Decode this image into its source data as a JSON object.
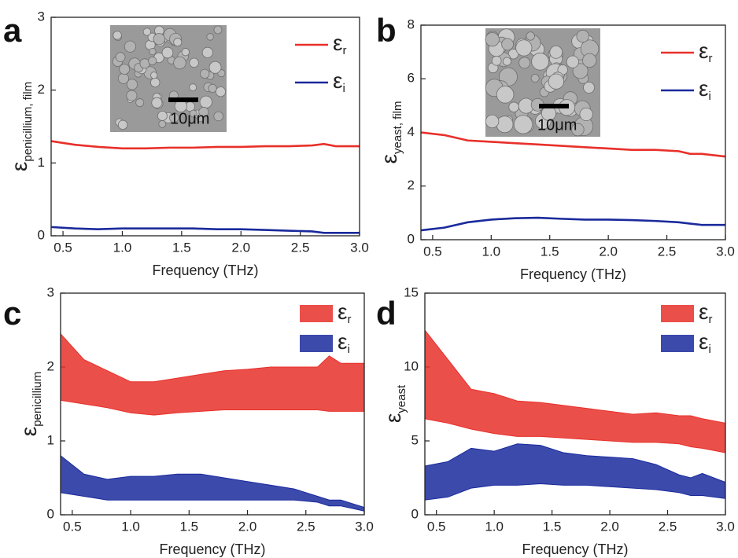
{
  "chart_data": [
    {
      "type": "line",
      "label": "a",
      "xlabel": "Frequency (THz)",
      "ylabel": {
        "symbol": "ε",
        "subscript": "penicillium, film"
      },
      "inset_label": "10μm",
      "xlim": [
        0.4,
        3.0
      ],
      "xticks": [
        0.5,
        {
          "value": 1,
          "label": "1.0"
        },
        1.5,
        {
          "value": 2,
          "label": "2.0"
        },
        2.5,
        {
          "value": 3,
          "label": "3.0"
        }
      ],
      "ylim": [
        0,
        3
      ],
      "yticks": [
        0,
        1,
        2,
        3
      ],
      "x": [
        0.4,
        0.6,
        0.8,
        1.0,
        1.2,
        1.4,
        1.6,
        1.8,
        2.0,
        2.2,
        2.4,
        2.6,
        2.7,
        2.8,
        3.0
      ],
      "series": [
        {
          "name": "ε",
          "subscript": "r",
          "color": "#e8302a",
          "values": [
            1.3,
            1.25,
            1.22,
            1.2,
            1.2,
            1.21,
            1.21,
            1.22,
            1.22,
            1.23,
            1.23,
            1.24,
            1.26,
            1.23,
            1.23
          ]
        },
        {
          "name": "ε",
          "subscript": "i",
          "color": "#1a2a9c",
          "values": [
            0.12,
            0.1,
            0.09,
            0.1,
            0.1,
            0.1,
            0.1,
            0.09,
            0.09,
            0.08,
            0.07,
            0.06,
            0.04,
            0.04,
            0.04
          ]
        }
      ]
    },
    {
      "type": "line",
      "label": "b",
      "xlabel": "Frequency (THz)",
      "ylabel": {
        "symbol": "ε",
        "subscript": "yeast, film"
      },
      "inset_label": "10μm",
      "xlim": [
        0.4,
        3.0
      ],
      "xticks": [
        0.5,
        {
          "value": 1,
          "label": "1.0"
        },
        1.5,
        {
          "value": 2,
          "label": "2.0"
        },
        2.5,
        {
          "value": 3,
          "label": "3.0"
        }
      ],
      "ylim": [
        0,
        8
      ],
      "yticks": [
        0,
        2,
        4,
        6,
        8
      ],
      "x": [
        0.4,
        0.6,
        0.8,
        1.0,
        1.2,
        1.4,
        1.6,
        1.8,
        2.0,
        2.2,
        2.4,
        2.6,
        2.7,
        2.8,
        3.0
      ],
      "series": [
        {
          "name": "ε",
          "subscript": "r",
          "color": "#e8302a",
          "values": [
            4.0,
            3.9,
            3.7,
            3.65,
            3.6,
            3.55,
            3.5,
            3.45,
            3.4,
            3.35,
            3.35,
            3.3,
            3.2,
            3.2,
            3.1
          ]
        },
        {
          "name": "ε",
          "subscript": "i",
          "color": "#1a2a9c",
          "values": [
            0.35,
            0.45,
            0.65,
            0.75,
            0.8,
            0.82,
            0.78,
            0.75,
            0.75,
            0.73,
            0.7,
            0.65,
            0.6,
            0.55,
            0.55
          ]
        }
      ]
    },
    {
      "type": "area",
      "label": "c",
      "xlabel": "Frequency (THz)",
      "ylabel": {
        "symbol": "ε",
        "subscript": "penicillium"
      },
      "xlim": [
        0.4,
        3.0
      ],
      "xticks": [
        0.5,
        {
          "value": 1,
          "label": "1.0"
        },
        1.5,
        {
          "value": 2,
          "label": "2.0"
        },
        2.5,
        {
          "value": 3,
          "label": "3.0"
        }
      ],
      "ylim": [
        0,
        3
      ],
      "yticks": [
        0,
        1,
        2,
        3
      ],
      "x": [
        0.4,
        0.6,
        0.8,
        1.0,
        1.2,
        1.4,
        1.6,
        1.8,
        2.0,
        2.2,
        2.4,
        2.6,
        2.7,
        2.8,
        3.0
      ],
      "series": [
        {
          "name": "ε",
          "subscript": "r",
          "color": "#e8302a",
          "upper": [
            2.45,
            2.1,
            1.95,
            1.8,
            1.8,
            1.85,
            1.9,
            1.95,
            1.97,
            2.0,
            2.0,
            2.0,
            2.15,
            2.05,
            2.05
          ],
          "lower": [
            1.55,
            1.5,
            1.45,
            1.38,
            1.35,
            1.38,
            1.4,
            1.42,
            1.42,
            1.42,
            1.42,
            1.42,
            1.4,
            1.4,
            1.4
          ]
        },
        {
          "name": "ε",
          "subscript": "i",
          "color": "#1a2a9c",
          "upper": [
            0.8,
            0.55,
            0.48,
            0.52,
            0.52,
            0.55,
            0.55,
            0.5,
            0.45,
            0.4,
            0.35,
            0.25,
            0.2,
            0.2,
            0.1
          ],
          "lower": [
            0.3,
            0.25,
            0.2,
            0.2,
            0.2,
            0.2,
            0.2,
            0.2,
            0.2,
            0.2,
            0.2,
            0.17,
            0.12,
            0.12,
            0.05
          ]
        }
      ]
    },
    {
      "type": "area",
      "label": "d",
      "xlabel": "Frequency (THz)",
      "ylabel": {
        "symbol": "ε",
        "subscript": "yeast"
      },
      "xlim": [
        0.4,
        3.0
      ],
      "xticks": [
        0.5,
        {
          "value": 1,
          "label": "1.0"
        },
        1.5,
        {
          "value": 2,
          "label": "2.0"
        },
        2.5,
        {
          "value": 3,
          "label": "3.0"
        }
      ],
      "ylim": [
        0,
        15
      ],
      "yticks": [
        0,
        5,
        10,
        15
      ],
      "x": [
        0.4,
        0.6,
        0.8,
        1.0,
        1.2,
        1.4,
        1.6,
        1.8,
        2.0,
        2.2,
        2.4,
        2.6,
        2.7,
        2.8,
        3.0
      ],
      "series": [
        {
          "name": "ε",
          "subscript": "r",
          "color": "#e8302a",
          "upper": [
            12.5,
            10.5,
            8.5,
            8.2,
            7.7,
            7.6,
            7.4,
            7.2,
            7.0,
            6.8,
            6.9,
            6.7,
            6.7,
            6.5,
            6.2
          ],
          "lower": [
            6.5,
            6.2,
            5.8,
            5.5,
            5.3,
            5.3,
            5.2,
            5.1,
            5.0,
            4.9,
            4.9,
            4.8,
            4.6,
            4.5,
            4.2
          ]
        },
        {
          "name": "ε",
          "subscript": "i",
          "color": "#1a2a9c",
          "upper": [
            3.3,
            3.6,
            4.5,
            4.3,
            4.8,
            4.7,
            4.2,
            4.0,
            3.9,
            3.8,
            3.4,
            2.7,
            2.5,
            2.8,
            2.2
          ],
          "lower": [
            1.0,
            1.2,
            1.8,
            2.0,
            2.0,
            2.1,
            2.0,
            2.0,
            1.9,
            1.8,
            1.7,
            1.5,
            1.3,
            1.3,
            1.1
          ]
        }
      ]
    }
  ]
}
